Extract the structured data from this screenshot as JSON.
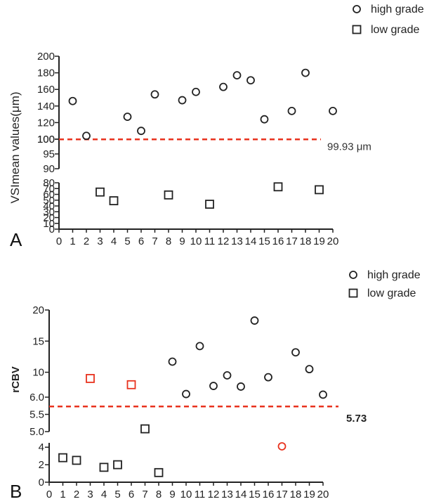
{
  "chart_data": [
    {
      "panel": "A",
      "type": "scatter",
      "ylabel": "VSImean  values(μm)",
      "xlim": [
        0,
        20
      ],
      "x_ticks": [
        0,
        1,
        2,
        3,
        4,
        5,
        6,
        7,
        8,
        9,
        10,
        11,
        12,
        13,
        14,
        15,
        16,
        17,
        18,
        19,
        20
      ],
      "y_segments": [
        {
          "range": [
            0,
            80
          ],
          "ticks": [
            0,
            10,
            20,
            30,
            40,
            50,
            60,
            70,
            80
          ]
        },
        {
          "range": [
            90,
            100
          ],
          "ticks": [
            90,
            95,
            100
          ]
        },
        {
          "range": [
            100,
            200
          ],
          "ticks": [
            100,
            120,
            140,
            160,
            180,
            200
          ]
        }
      ],
      "threshold": {
        "value": 99.93,
        "label": "99.93 μm",
        "color": "#e8321e"
      },
      "series": [
        {
          "name": "high grade",
          "marker": "circle",
          "color": "#222222",
          "points": [
            {
              "x": 1,
              "y": 146
            },
            {
              "x": 2,
              "y": 104
            },
            {
              "x": 5,
              "y": 127
            },
            {
              "x": 6,
              "y": 110
            },
            {
              "x": 7,
              "y": 154
            },
            {
              "x": 9,
              "y": 147
            },
            {
              "x": 10,
              "y": 157
            },
            {
              "x": 12,
              "y": 163
            },
            {
              "x": 13,
              "y": 177
            },
            {
              "x": 14,
              "y": 171
            },
            {
              "x": 15,
              "y": 124
            },
            {
              "x": 17,
              "y": 134
            },
            {
              "x": 18,
              "y": 180
            },
            {
              "x": 20,
              "y": 134
            }
          ]
        },
        {
          "name": "low grade",
          "marker": "square",
          "color": "#222222",
          "points": [
            {
              "x": 3,
              "y": 64
            },
            {
              "x": 4,
              "y": 49
            },
            {
              "x": 8,
              "y": 59
            },
            {
              "x": 11,
              "y": 43
            },
            {
              "x": 16,
              "y": 73
            },
            {
              "x": 19,
              "y": 68
            }
          ]
        }
      ]
    },
    {
      "panel": "B",
      "type": "scatter",
      "ylabel": "rCBV",
      "xlim": [
        0,
        20
      ],
      "x_ticks": [
        0,
        1,
        2,
        3,
        4,
        5,
        6,
        7,
        8,
        9,
        10,
        11,
        12,
        13,
        14,
        15,
        16,
        17,
        18,
        19,
        20
      ],
      "y_segments": [
        {
          "range": [
            0,
            4.5
          ],
          "ticks": [
            0,
            2,
            4
          ]
        },
        {
          "range": [
            5.0,
            6.0
          ],
          "ticks": [
            5.0,
            5.5,
            6.0
          ]
        },
        {
          "range": [
            6.0,
            20
          ],
          "ticks": [
            10,
            15,
            20
          ]
        }
      ],
      "threshold": {
        "value": 5.73,
        "label": "5.73",
        "color": "#e8321e"
      },
      "series": [
        {
          "name": "high grade",
          "marker": "circle",
          "color": "#222222",
          "points": [
            {
              "x": 9,
              "y": 11.7
            },
            {
              "x": 10,
              "y": 6.5
            },
            {
              "x": 11,
              "y": 14.2
            },
            {
              "x": 12,
              "y": 7.8
            },
            {
              "x": 13,
              "y": 9.5
            },
            {
              "x": 14,
              "y": 7.7
            },
            {
              "x": 15,
              "y": 18.3
            },
            {
              "x": 16,
              "y": 9.2
            },
            {
              "x": 17,
              "y": 4.1,
              "color": "#e8321e"
            },
            {
              "x": 18,
              "y": 13.2
            },
            {
              "x": 19,
              "y": 10.5
            },
            {
              "x": 20,
              "y": 6.4
            }
          ]
        },
        {
          "name": "low grade",
          "marker": "square",
          "color": "#222222",
          "points": [
            {
              "x": 1,
              "y": 2.8
            },
            {
              "x": 2,
              "y": 2.5
            },
            {
              "x": 3,
              "y": 9.0,
              "color": "#e8321e"
            },
            {
              "x": 4,
              "y": 1.7
            },
            {
              "x": 5,
              "y": 2.0
            },
            {
              "x": 6,
              "y": 8.0,
              "color": "#e8321e"
            },
            {
              "x": 7,
              "y": 5.08
            },
            {
              "x": 8,
              "y": 1.1
            }
          ]
        }
      ]
    }
  ]
}
